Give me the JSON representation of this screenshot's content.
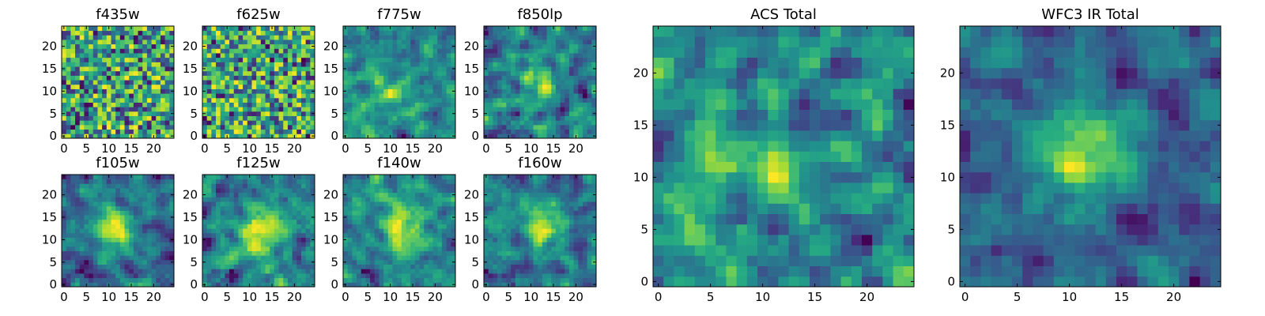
{
  "figure": {
    "colormap": "viridis",
    "colors": {
      "dark": "#440154",
      "mid": "#21918c",
      "bright": "#fde725"
    }
  },
  "chart_data": [
    {
      "type": "heatmap",
      "title": "f435w",
      "xticks": [
        0,
        5,
        10,
        15,
        20
      ],
      "yticks": [
        0,
        5,
        10,
        15,
        20
      ],
      "xlim": [
        -0.5,
        24.5
      ],
      "ylim": [
        -0.5,
        24.5
      ],
      "grid": false,
      "pattern": "noise",
      "seed": 435
    },
    {
      "type": "heatmap",
      "title": "f625w",
      "xticks": [
        0,
        5,
        10,
        15,
        20
      ],
      "yticks": [
        0,
        5,
        10,
        15,
        20
      ],
      "xlim": [
        -0.5,
        24.5
      ],
      "ylim": [
        -0.5,
        24.5
      ],
      "grid": false,
      "pattern": "noise",
      "seed": 625
    },
    {
      "type": "heatmap",
      "title": "f775w",
      "xticks": [
        0,
        5,
        10,
        15,
        20
      ],
      "yticks": [
        0,
        5,
        10,
        15,
        20
      ],
      "xlim": [
        -0.5,
        24.5
      ],
      "ylim": [
        -0.5,
        24.5
      ],
      "grid": false,
      "pattern": "faint-source",
      "source_center": [
        11,
        11
      ],
      "seed": 775
    },
    {
      "type": "heatmap",
      "title": "f850lp",
      "xticks": [
        0,
        5,
        10,
        15,
        20
      ],
      "yticks": [
        0,
        5,
        10,
        15,
        20
      ],
      "xlim": [
        -0.5,
        24.5
      ],
      "ylim": [
        -0.5,
        24.5
      ],
      "grid": false,
      "pattern": "faint-source",
      "source_center": [
        12,
        12
      ],
      "seed": 850
    },
    {
      "type": "heatmap",
      "title": "f105w",
      "xticks": [
        0,
        5,
        10,
        15,
        20
      ],
      "yticks": [
        0,
        5,
        10,
        15,
        20
      ],
      "xlim": [
        -0.5,
        24.5
      ],
      "ylim": [
        -0.5,
        24.5
      ],
      "grid": false,
      "pattern": "source",
      "source_center": [
        11,
        12
      ],
      "seed": 105
    },
    {
      "type": "heatmap",
      "title": "f125w",
      "xticks": [
        0,
        5,
        10,
        15,
        20
      ],
      "yticks": [
        0,
        5,
        10,
        15,
        20
      ],
      "xlim": [
        -0.5,
        24.5
      ],
      "ylim": [
        -0.5,
        24.5
      ],
      "grid": false,
      "pattern": "source",
      "source_center": [
        12,
        11
      ],
      "seed": 125
    },
    {
      "type": "heatmap",
      "title": "f140w",
      "xticks": [
        0,
        5,
        10,
        15,
        20
      ],
      "yticks": [
        0,
        5,
        10,
        15,
        20
      ],
      "xlim": [
        -0.5,
        24.5
      ],
      "ylim": [
        -0.5,
        24.5
      ],
      "grid": false,
      "pattern": "source",
      "source_center": [
        13,
        13
      ],
      "seed": 140
    },
    {
      "type": "heatmap",
      "title": "f160w",
      "xticks": [
        0,
        5,
        10,
        15,
        20
      ],
      "yticks": [
        0,
        5,
        10,
        15,
        20
      ],
      "xlim": [
        -0.5,
        24.5
      ],
      "ylim": [
        -0.5,
        24.5
      ],
      "grid": false,
      "pattern": "source",
      "source_center": [
        13,
        13
      ],
      "seed": 160
    },
    {
      "type": "heatmap",
      "title": "ACS Total",
      "xticks": [
        0,
        5,
        10,
        15,
        20
      ],
      "yticks": [
        0,
        5,
        10,
        15,
        20
      ],
      "xlim": [
        -0.5,
        24.5
      ],
      "ylim": [
        -0.5,
        24.5
      ],
      "grid": false,
      "pattern": "faint-source",
      "source_center": [
        11,
        11
      ],
      "seed": 901
    },
    {
      "type": "heatmap",
      "title": "WFC3 IR Total",
      "xticks": [
        0,
        5,
        10,
        15,
        20
      ],
      "yticks": [
        0,
        5,
        10,
        15,
        20
      ],
      "xlim": [
        -0.5,
        24.5
      ],
      "ylim": [
        -0.5,
        24.5
      ],
      "grid": false,
      "pattern": "source",
      "source_center": [
        11,
        12
      ],
      "seed": 902
    }
  ]
}
